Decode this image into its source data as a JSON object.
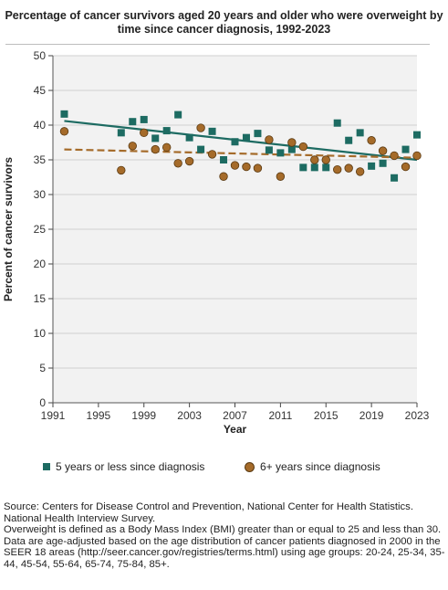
{
  "title": "Percentage of cancer survivors aged 20 years and older who were overweight by time since cancer diagnosis, 1992-2023",
  "chart_data": {
    "type": "scatter",
    "xlabel": "Year",
    "ylabel": "Percent of cancer survivors",
    "xlim": [
      1991,
      2023
    ],
    "ylim": [
      0,
      50
    ],
    "xticks": [
      "1991",
      "1995",
      "1999",
      "2003",
      "2007",
      "2011",
      "2015",
      "2019",
      "2023"
    ],
    "yticks": [
      "0",
      "5",
      "10",
      "15",
      "20",
      "25",
      "30",
      "35",
      "40",
      "45",
      "50"
    ],
    "grid": "horizontal",
    "background": "#f2f2f2",
    "series": [
      {
        "name": "5 years or less since diagnosis",
        "marker": "square",
        "color": "#1d6b62",
        "x": [
          1992,
          1997,
          1998,
          1999,
          2000,
          2001,
          2002,
          2003,
          2004,
          2005,
          2006,
          2007,
          2008,
          2009,
          2010,
          2011,
          2012,
          2013,
          2014,
          2015,
          2016,
          2017,
          2018,
          2019,
          2020,
          2021,
          2022,
          2023
        ],
        "y": [
          41.6,
          38.9,
          40.5,
          40.8,
          38.1,
          39.2,
          41.5,
          38.2,
          36.5,
          39.1,
          35.0,
          37.6,
          38.2,
          38.8,
          36.4,
          36.0,
          36.5,
          33.9,
          33.9,
          33.9,
          40.3,
          37.8,
          38.9,
          34.1,
          34.5,
          32.4,
          36.5,
          38.6
        ],
        "trend": {
          "x": [
            1992,
            2023
          ],
          "y": [
            40.6,
            35.0
          ],
          "style": "solid"
        }
      },
      {
        "name": "6+ years since diagnosis",
        "marker": "circle",
        "color": "#a56b2a",
        "x": [
          1992,
          1997,
          1998,
          1999,
          2000,
          2001,
          2002,
          2003,
          2004,
          2005,
          2006,
          2007,
          2008,
          2009,
          2010,
          2011,
          2012,
          2013,
          2014,
          2015,
          2016,
          2017,
          2018,
          2019,
          2020,
          2021,
          2022,
          2023
        ],
        "y": [
          39.1,
          33.5,
          37.0,
          38.9,
          36.5,
          36.8,
          34.5,
          34.8,
          39.6,
          35.8,
          32.6,
          34.2,
          34.0,
          33.8,
          37.9,
          32.6,
          37.5,
          36.9,
          35.0,
          35.0,
          33.6,
          33.8,
          33.3,
          37.8,
          36.3,
          35.6,
          34.0,
          35.6
        ],
        "trend": {
          "x": [
            1992,
            2023
          ],
          "y": [
            36.5,
            35.3
          ],
          "style": "dashed"
        }
      }
    ]
  },
  "legend": {
    "item1": "5 years or less since diagnosis",
    "item2": "6+ years since diagnosis"
  },
  "footnotes": [
    "Source: Centers for Disease Control and Prevention, National Center for Health Statistics. National Health Interview Survey.",
    "Overweight is defined as a Body Mass Index (BMI) greater than or equal to 25 and less than 30.",
    "Data are age-adjusted based on the age distribution of cancer patients diagnosed in 2000 in the SEER 18 areas (http://seer.cancer.gov/registries/terms.html) using age groups: 20-24, 25-34, 35-44, 45-54, 55-64, 65-74, 75-84, 85+."
  ]
}
